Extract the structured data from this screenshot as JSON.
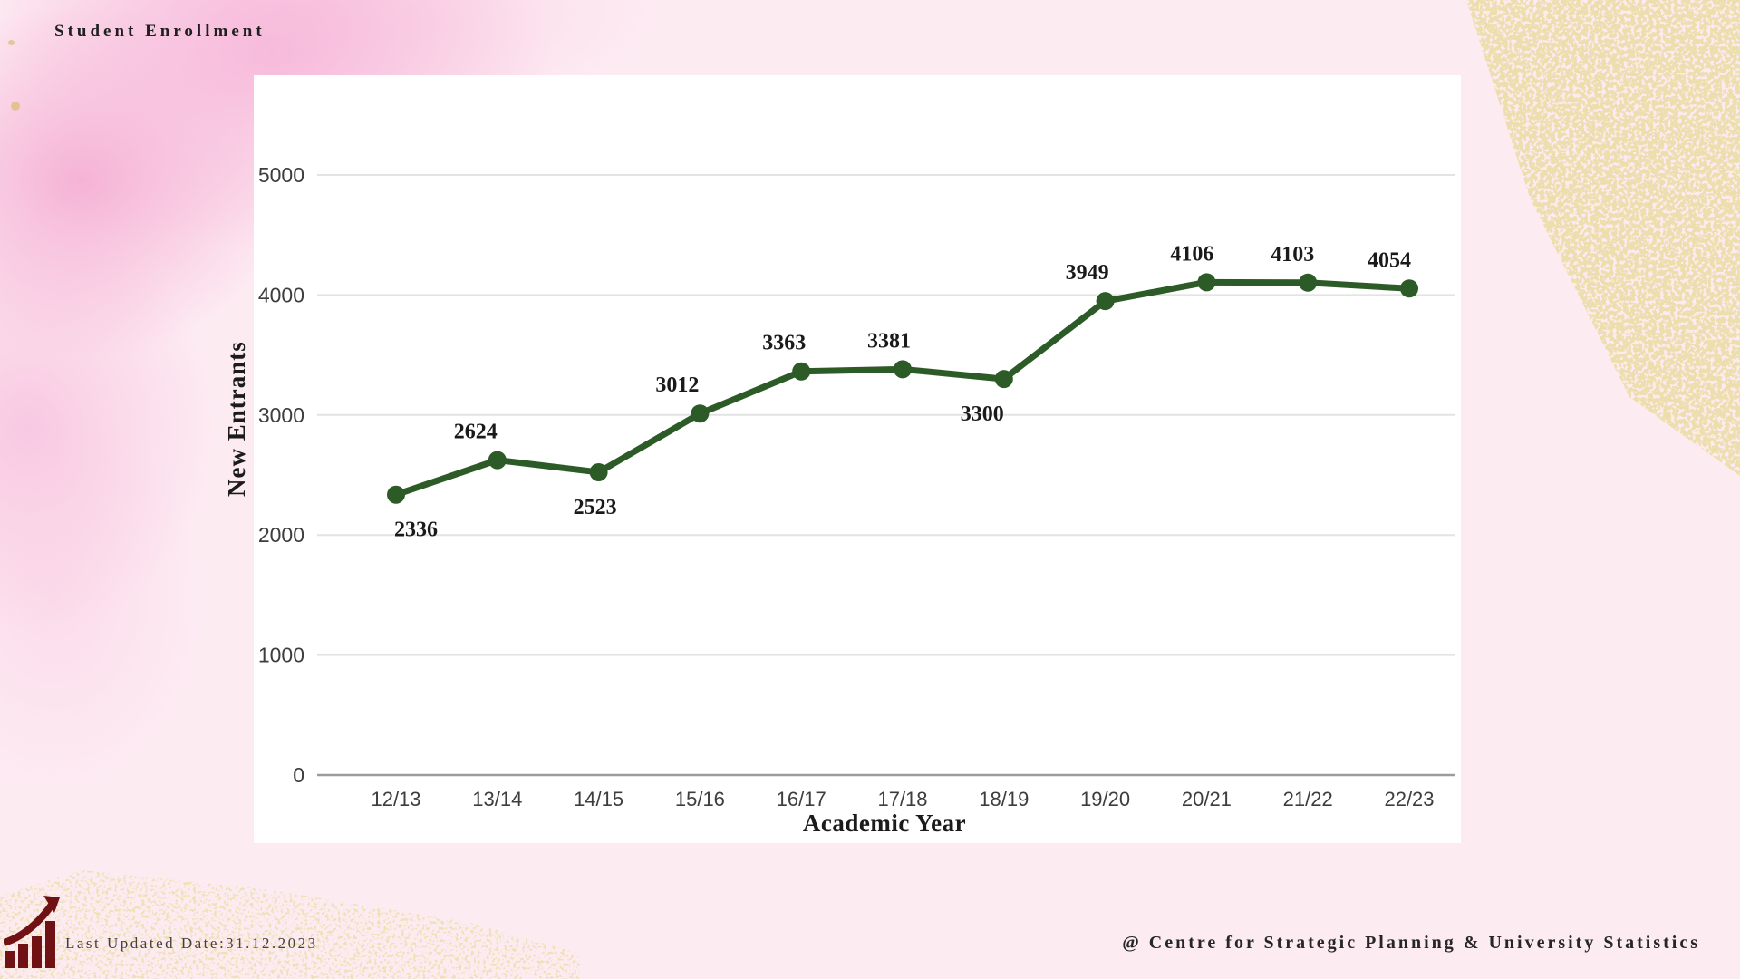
{
  "page": {
    "title": "Student Enrollment",
    "footer": {
      "last_updated": "Last Updated Date:31.12.2023",
      "credit": "@ Centre for Strategic Planning & University Statistics"
    }
  },
  "icons": {
    "growth_chart_icon": "bar-chart-with-rising-arrow"
  },
  "colors": {
    "background": "#fdebf2",
    "watercolor": "#f5b8d6",
    "gold": "#d9ba6b",
    "panel": "#ffffff",
    "grid": "#e3e3e3",
    "axis": "#9c9c9c",
    "tick_text": "#3d3d3d",
    "label_text": "#1a1a1a",
    "line": "#2d5b27",
    "maroon": "#701214",
    "title_text": "#1f1f1f",
    "footer_text": "#45403a"
  },
  "chart_data": {
    "type": "line",
    "title": "Student Enrollment",
    "xlabel": "Academic Year",
    "ylabel": "New Entrants",
    "categories": [
      "12/13",
      "13/14",
      "14/15",
      "15/16",
      "16/17",
      "17/18",
      "18/19",
      "19/20",
      "20/21",
      "21/22",
      "22/23"
    ],
    "values": [
      2336,
      2624,
      2523,
      3012,
      3363,
      3381,
      3300,
      3949,
      4106,
      4103,
      4054
    ],
    "ylim": [
      0,
      5000
    ],
    "yticks": [
      0,
      1000,
      2000,
      3000,
      4000,
      5000
    ],
    "grid": true,
    "legend": false,
    "series_name": "New Entrants",
    "label_positions": [
      "below",
      "above",
      "below",
      "above",
      "above",
      "above",
      "below",
      "above",
      "above",
      "above",
      "above"
    ],
    "label_offsets": [
      22,
      -24,
      -4,
      -25,
      -19,
      -15,
      -24,
      -20,
      -16,
      -17,
      -22
    ]
  }
}
